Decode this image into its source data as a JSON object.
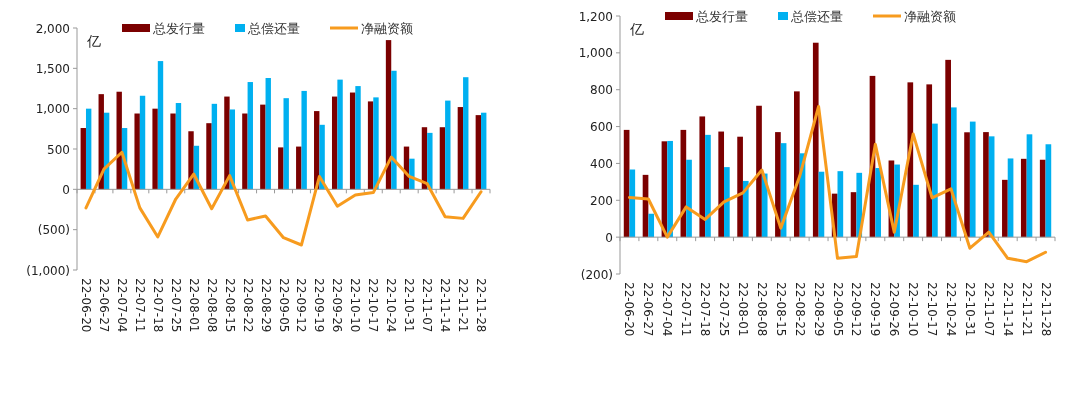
{
  "chart_data": [
    {
      "type": "bar",
      "ylabel": "亿",
      "legend": "top",
      "categories": [
        "22-06-20",
        "22-06-27",
        "22-07-04",
        "22-07-11",
        "22-07-18",
        "22-07-25",
        "22-08-01",
        "22-08-08",
        "22-08-15",
        "22-08-22",
        "22-08-29",
        "22-09-05",
        "22-09-12",
        "22-09-19",
        "22-09-26",
        "22-10-10",
        "22-10-17",
        "22-10-24",
        "22-10-31",
        "22-11-07",
        "22-11-14",
        "22-11-21",
        "22-11-28"
      ],
      "ylim": [
        -1000,
        2000
      ],
      "yticks": [
        {
          "value": -1000,
          "label": "(1,000)"
        },
        {
          "value": -500,
          "label": "(500)"
        },
        0,
        500,
        {
          "value": 1000,
          "label": "1,000"
        },
        {
          "value": 1500,
          "label": "1,500"
        },
        {
          "value": 2000,
          "label": "2,000"
        }
      ],
      "series": [
        {
          "name": "总发行量",
          "color": "#7b0000",
          "values": [
            760,
            1180,
            1210,
            940,
            1000,
            940,
            720,
            820,
            1150,
            940,
            1050,
            520,
            530,
            970,
            1150,
            1200,
            1090,
            1850,
            530,
            770,
            770,
            1020,
            920
          ]
        },
        {
          "name": "总偿还量",
          "color": "#00b0f0",
          "values": [
            1000,
            950,
            760,
            1160,
            1590,
            1070,
            540,
            1060,
            990,
            1330,
            1380,
            1130,
            1220,
            800,
            1360,
            1280,
            1140,
            1470,
            380,
            700,
            1100,
            1390,
            950
          ]
        },
        {
          "name": "净融资额",
          "color": "#f79b1e",
          "type": "line",
          "values": [
            -230,
            250,
            460,
            -230,
            -590,
            -120,
            190,
            -240,
            170,
            -380,
            -330,
            -600,
            -690,
            160,
            -210,
            -70,
            -40,
            400,
            160,
            70,
            -340,
            -360,
            -30
          ]
        }
      ]
    },
    {
      "type": "bar",
      "ylabel": "亿",
      "legend": "top",
      "categories": [
        "22-06-20",
        "22-06-27",
        "22-07-04",
        "22-07-11",
        "22-07-18",
        "22-07-25",
        "22-08-01",
        "22-08-08",
        "22-08-15",
        "22-08-22",
        "22-08-29",
        "22-09-05",
        "22-09-12",
        "22-09-19",
        "22-09-26",
        "22-10-10",
        "22-10-17",
        "22-10-24",
        "22-10-31",
        "22-11-07",
        "22-11-14",
        "22-11-21",
        "22-11-28"
      ],
      "ylim": [
        -200,
        1200
      ],
      "yticks": [
        {
          "value": -200,
          "label": "(200)"
        },
        0,
        200,
        400,
        600,
        800,
        {
          "value": 1000,
          "label": "1,000"
        },
        {
          "value": 1200,
          "label": "1,200"
        }
      ],
      "series": [
        {
          "name": "总发行量",
          "color": "#7b0000",
          "values": [
            582,
            338,
            520,
            582,
            655,
            573,
            545,
            713,
            570,
            791,
            1055,
            236,
            244,
            875,
            416,
            840,
            829,
            962,
            569,
            570,
            311,
            425,
            420
          ]
        },
        {
          "name": "总偿还量",
          "color": "#00b0f0",
          "values": [
            367,
            127,
            522,
            420,
            555,
            380,
            305,
            345,
            510,
            455,
            355,
            358,
            349,
            375,
            394,
            284,
            616,
            704,
            627,
            547,
            427,
            558,
            504
          ]
        },
        {
          "name": "净融资额",
          "color": "#f79b1e",
          "type": "line",
          "values": [
            215,
            207,
            0,
            164,
            96,
            191,
            240,
            364,
            49,
            330,
            709,
            -115,
            -105,
            504,
            27,
            560,
            213,
            262,
            -60,
            27,
            -115,
            -133,
            -82
          ]
        }
      ]
    }
  ]
}
